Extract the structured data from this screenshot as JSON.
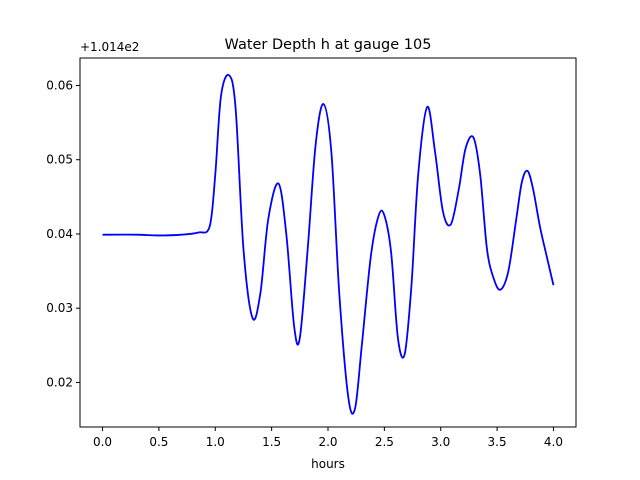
{
  "chart_data": {
    "type": "line",
    "title": "Water Depth h at gauge 105",
    "xlabel": "hours",
    "ylabel": "",
    "offset_text": "+1.014e2",
    "xlim": [
      -0.2,
      4.2
    ],
    "ylim": [
      0.014,
      0.0637
    ],
    "xticks": [
      0.0,
      0.5,
      1.0,
      1.5,
      2.0,
      2.5,
      3.0,
      3.5,
      4.0
    ],
    "xtick_labels": [
      "0.0",
      "0.5",
      "1.0",
      "1.5",
      "2.0",
      "2.5",
      "3.0",
      "3.5",
      "4.0"
    ],
    "yticks": [
      0.02,
      0.03,
      0.04,
      0.05,
      0.06
    ],
    "ytick_labels": [
      "0.02",
      "0.03",
      "0.04",
      "0.05",
      "0.06"
    ],
    "grid": false,
    "line_color": "#0000ff",
    "series": [
      {
        "name": "",
        "x": [
          0.0,
          0.3,
          0.5,
          0.7,
          0.85,
          0.95,
          1.0,
          1.05,
          1.12,
          1.18,
          1.25,
          1.33,
          1.4,
          1.47,
          1.56,
          1.63,
          1.7,
          1.75,
          1.82,
          1.89,
          1.96,
          2.03,
          2.1,
          2.18,
          2.24,
          2.3,
          2.38,
          2.45,
          2.5,
          2.56,
          2.62,
          2.68,
          2.74,
          2.8,
          2.88,
          2.95,
          3.02,
          3.09,
          3.16,
          3.22,
          3.29,
          3.35,
          3.41,
          3.47,
          3.53,
          3.6,
          3.67,
          3.72,
          3.77,
          3.82,
          3.88,
          3.94,
          4.0
        ],
        "y": [
          0.0399,
          0.0399,
          0.0398,
          0.0399,
          0.0402,
          0.041,
          0.048,
          0.0585,
          0.0614,
          0.057,
          0.038,
          0.0287,
          0.032,
          0.042,
          0.0468,
          0.04,
          0.0275,
          0.026,
          0.038,
          0.052,
          0.0575,
          0.051,
          0.032,
          0.018,
          0.0165,
          0.025,
          0.037,
          0.0425,
          0.0425,
          0.0375,
          0.026,
          0.0238,
          0.033,
          0.048,
          0.0571,
          0.051,
          0.043,
          0.0413,
          0.046,
          0.0515,
          0.053,
          0.048,
          0.038,
          0.034,
          0.0325,
          0.035,
          0.042,
          0.047,
          0.0485,
          0.046,
          0.041,
          0.037,
          0.0331
        ]
      }
    ]
  }
}
